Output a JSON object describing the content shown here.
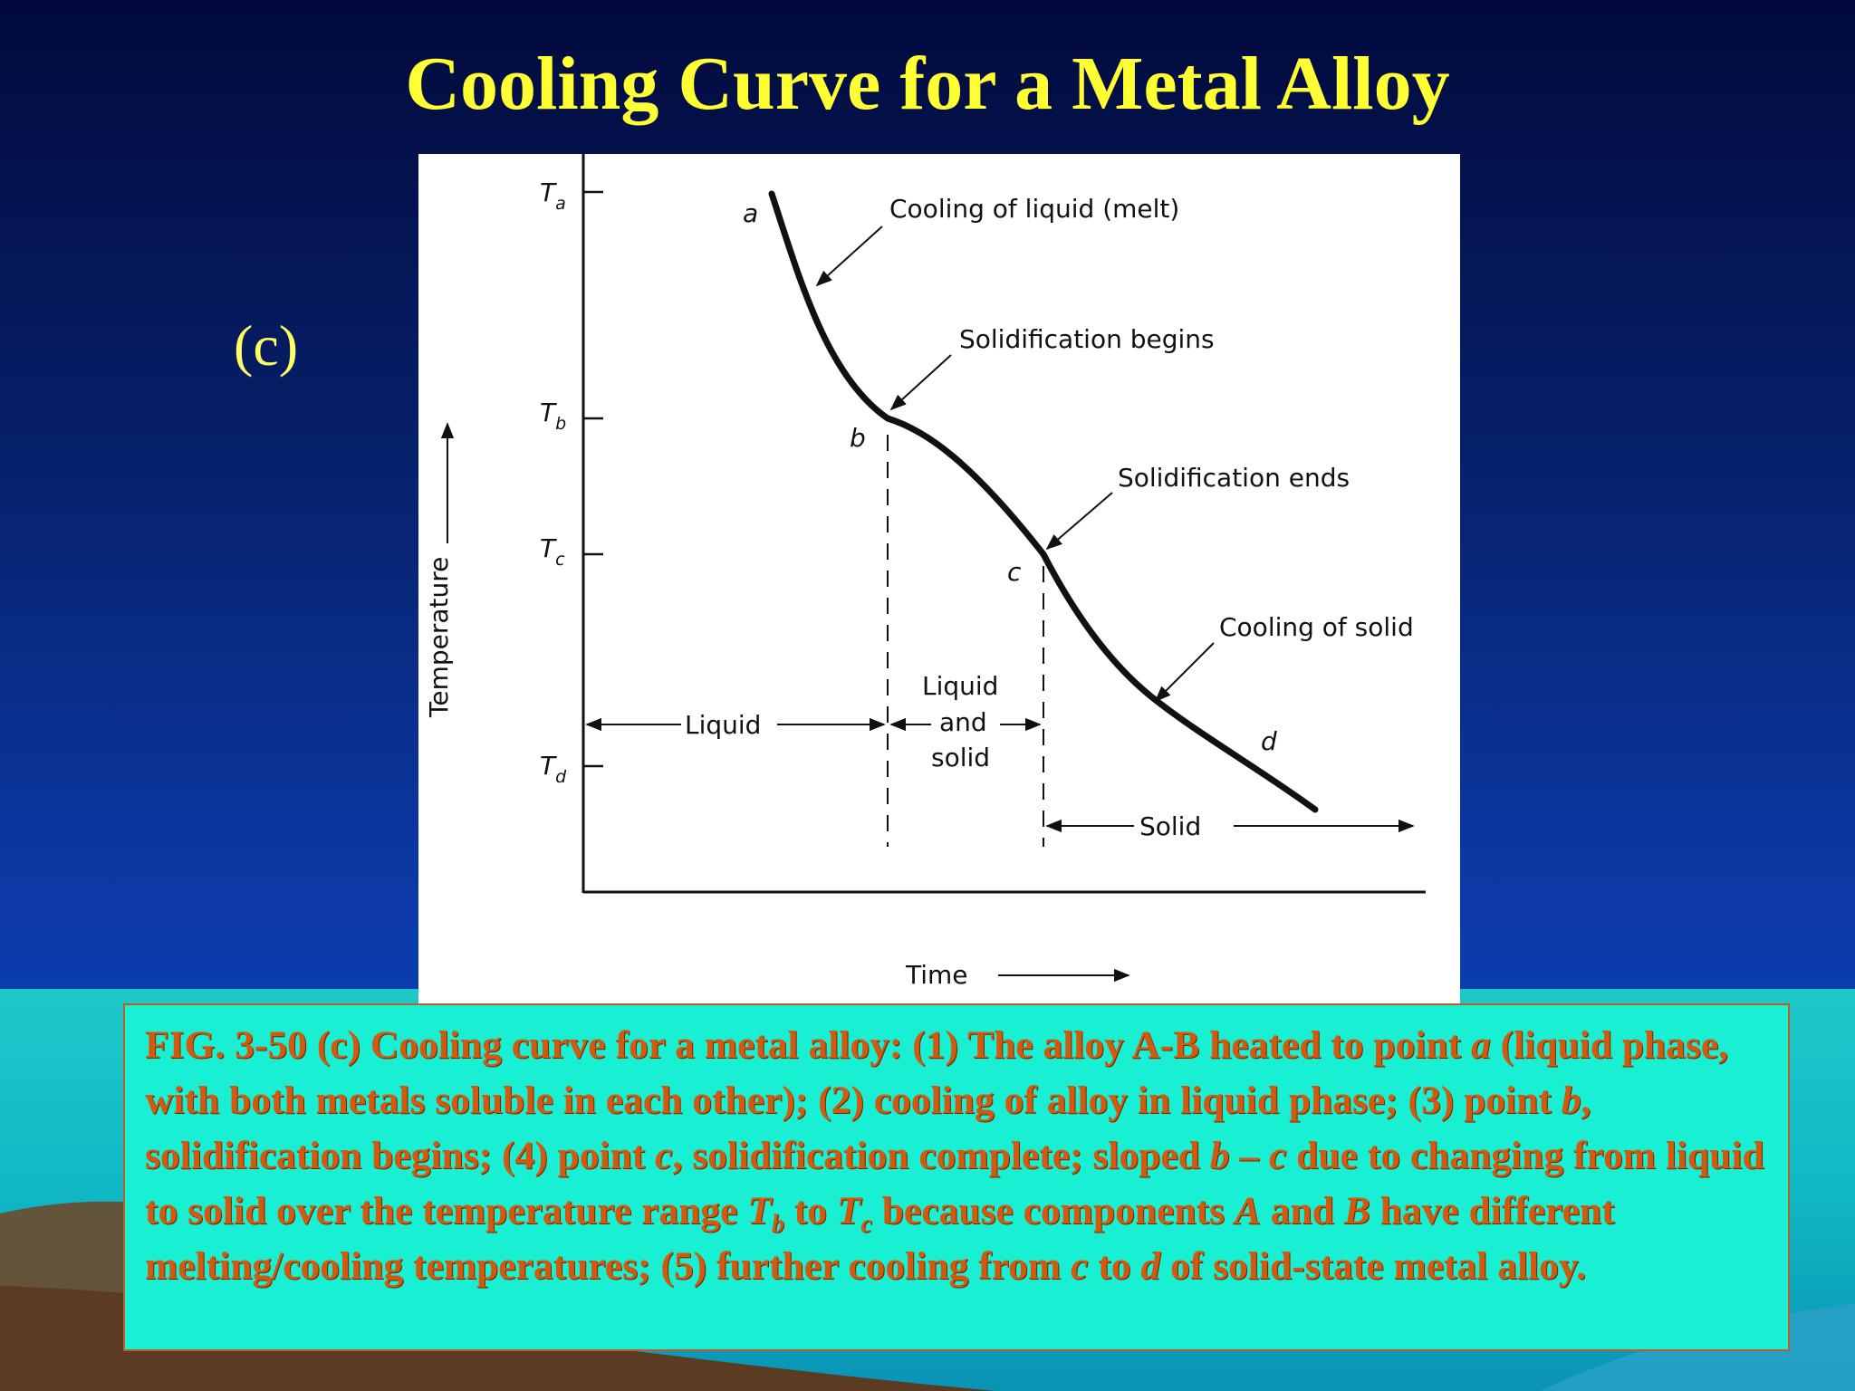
{
  "slide": {
    "title": "Cooling Curve for a Metal Alloy",
    "panel_label": "(c)"
  },
  "diagram": {
    "y_axis_label": "Temperature",
    "x_axis_label": "Time",
    "temperature_ticks": [
      {
        "symbol": "T",
        "sub": "a"
      },
      {
        "symbol": "T",
        "sub": "b"
      },
      {
        "symbol": "T",
        "sub": "c"
      },
      {
        "symbol": "T",
        "sub": "d"
      }
    ],
    "points": {
      "a": "a",
      "b": "b",
      "c": "c",
      "d": "d"
    },
    "annotations": {
      "cooling_liquid": "Cooling of liquid (melt)",
      "solidification_begins": "Solidification begins",
      "solidification_ends": "Solidification ends",
      "cooling_solid": "Cooling of solid"
    },
    "regions": {
      "liquid": "Liquid",
      "liquid_and_solid_1": "Liquid",
      "liquid_and_solid_2": "and",
      "liquid_and_solid_3": "solid",
      "solid": "Solid"
    }
  },
  "caption": {
    "text_1": "FIG. 3-50 (c) Cooling curve for a metal alloy: (1) The alloy A-B heated to point ",
    "a": "a",
    "text_2": " (liquid phase, with both metals soluble in each other); (2) cooling of alloy in liquid phase; (3) point ",
    "b": "b",
    "text_3": ", solidification begins; (4) point ",
    "c": "c",
    "text_4": ", solidification complete; sloped ",
    "range": "b – c",
    "text_5": "  due to changing from liquid to solid over the temperature range ",
    "tb": "T",
    "tb_sub": "b",
    "text_6": "  to ",
    "tc": "T",
    "tc_sub": "c",
    "text_7": " because components ",
    "comp_a": "A",
    "text_8": " and ",
    "comp_b": "B",
    "text_9": " have different melting/cooling temperatures; (5) further cooling from ",
    "c2": "c",
    "text_10": " to ",
    "d": "d",
    "text_11": " of solid-state metal alloy."
  },
  "colors": {
    "title": "#ffff33",
    "caption_text": "#d25a10",
    "caption_box": "#19f0d3",
    "background_top": "#020a3c"
  }
}
